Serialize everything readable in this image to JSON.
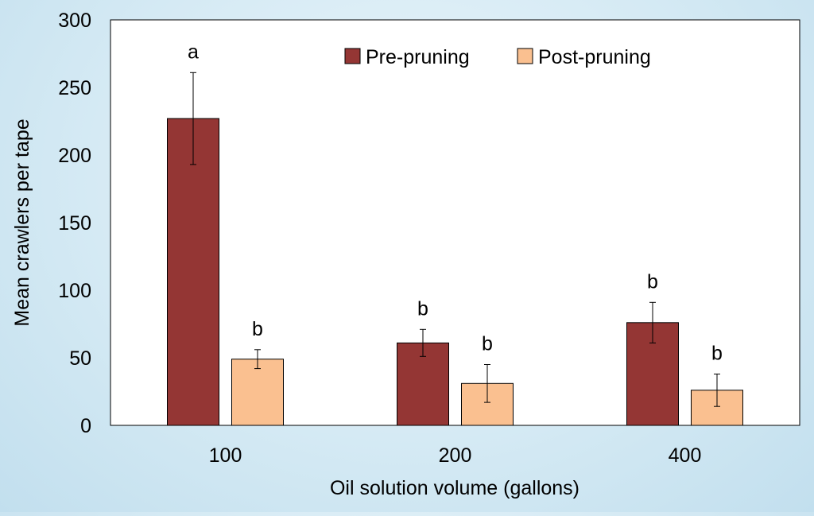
{
  "chart_data": {
    "type": "bar",
    "title": "",
    "xlabel": "Oil solution volume (gallons)",
    "ylabel": "Mean crawlers per tape",
    "ylim": [
      0,
      300
    ],
    "yticks": [
      0,
      50,
      100,
      150,
      200,
      250,
      300
    ],
    "categories": [
      "100",
      "200",
      "400"
    ],
    "legend_position": "top-center",
    "grid": false,
    "series": [
      {
        "name": "Pre-pruning",
        "color": "#943634",
        "values": [
          227,
          61,
          76
        ],
        "errors": [
          34,
          10,
          15
        ],
        "letters": [
          "a",
          "b",
          "b"
        ]
      },
      {
        "name": "Post-pruning",
        "color": "#fac090",
        "values": [
          49,
          31,
          26
        ],
        "errors": [
          7,
          14,
          12
        ],
        "letters": [
          "b",
          "b",
          "b"
        ]
      }
    ]
  }
}
